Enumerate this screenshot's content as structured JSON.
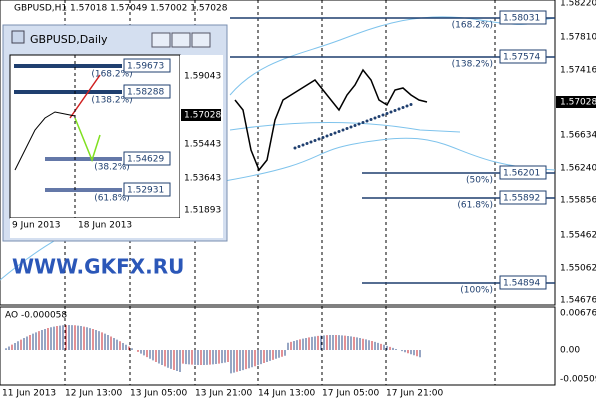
{
  "header": {
    "symbol": "GBPUSD,H1 1.57018 1.57049 1.57002 1.57028"
  },
  "price_axis": [
    "1.58220",
    "1.57810",
    "1.57416",
    "1.57028",
    "1.56634",
    "1.56240",
    "1.55856",
    "1.55462",
    "1.55062",
    "1.54676"
  ],
  "levels": [
    {
      "percent": "(168.2%)",
      "price": "1.58031"
    },
    {
      "percent": "(138.2%)",
      "price": "1.57574"
    },
    {
      "percent": "(50%)",
      "price": "1.56201"
    },
    {
      "percent": "(61.8%)",
      "price": "1.55892"
    },
    {
      "percent": "(100%)",
      "price": "1.54894"
    }
  ],
  "watermark": "WWW.GKFX.RU",
  "indicator": {
    "title": "AO -0.000058",
    "axis": [
      "0.006761",
      "0.00",
      "-0.00509"
    ]
  },
  "time_axis": [
    "11 Jun 2013",
    "12 Jun 13:00",
    "13 Jun 05:00",
    "13 Jun 21:00",
    "14 Jun 13:00",
    "17 Jun 05:00",
    "17 Jun 21:00"
  ],
  "inset": {
    "title": "GBPUSD,Daily",
    "price_axis": [
      "1.59043",
      "1.57028",
      "1.55443",
      "1.53643",
      "1.51893"
    ],
    "levels": [
      {
        "percent": "(168.2%)",
        "price": "1.59673"
      },
      {
        "percent": "(138.2%)",
        "price": "1.58288"
      },
      {
        "percent": "(38.2%)",
        "price": "1.54629"
      },
      {
        "percent": "(61.8%)",
        "price": "1.52931"
      }
    ],
    "time_axis": [
      "9 Jun 2013",
      "18 Jun 2013"
    ]
  }
}
